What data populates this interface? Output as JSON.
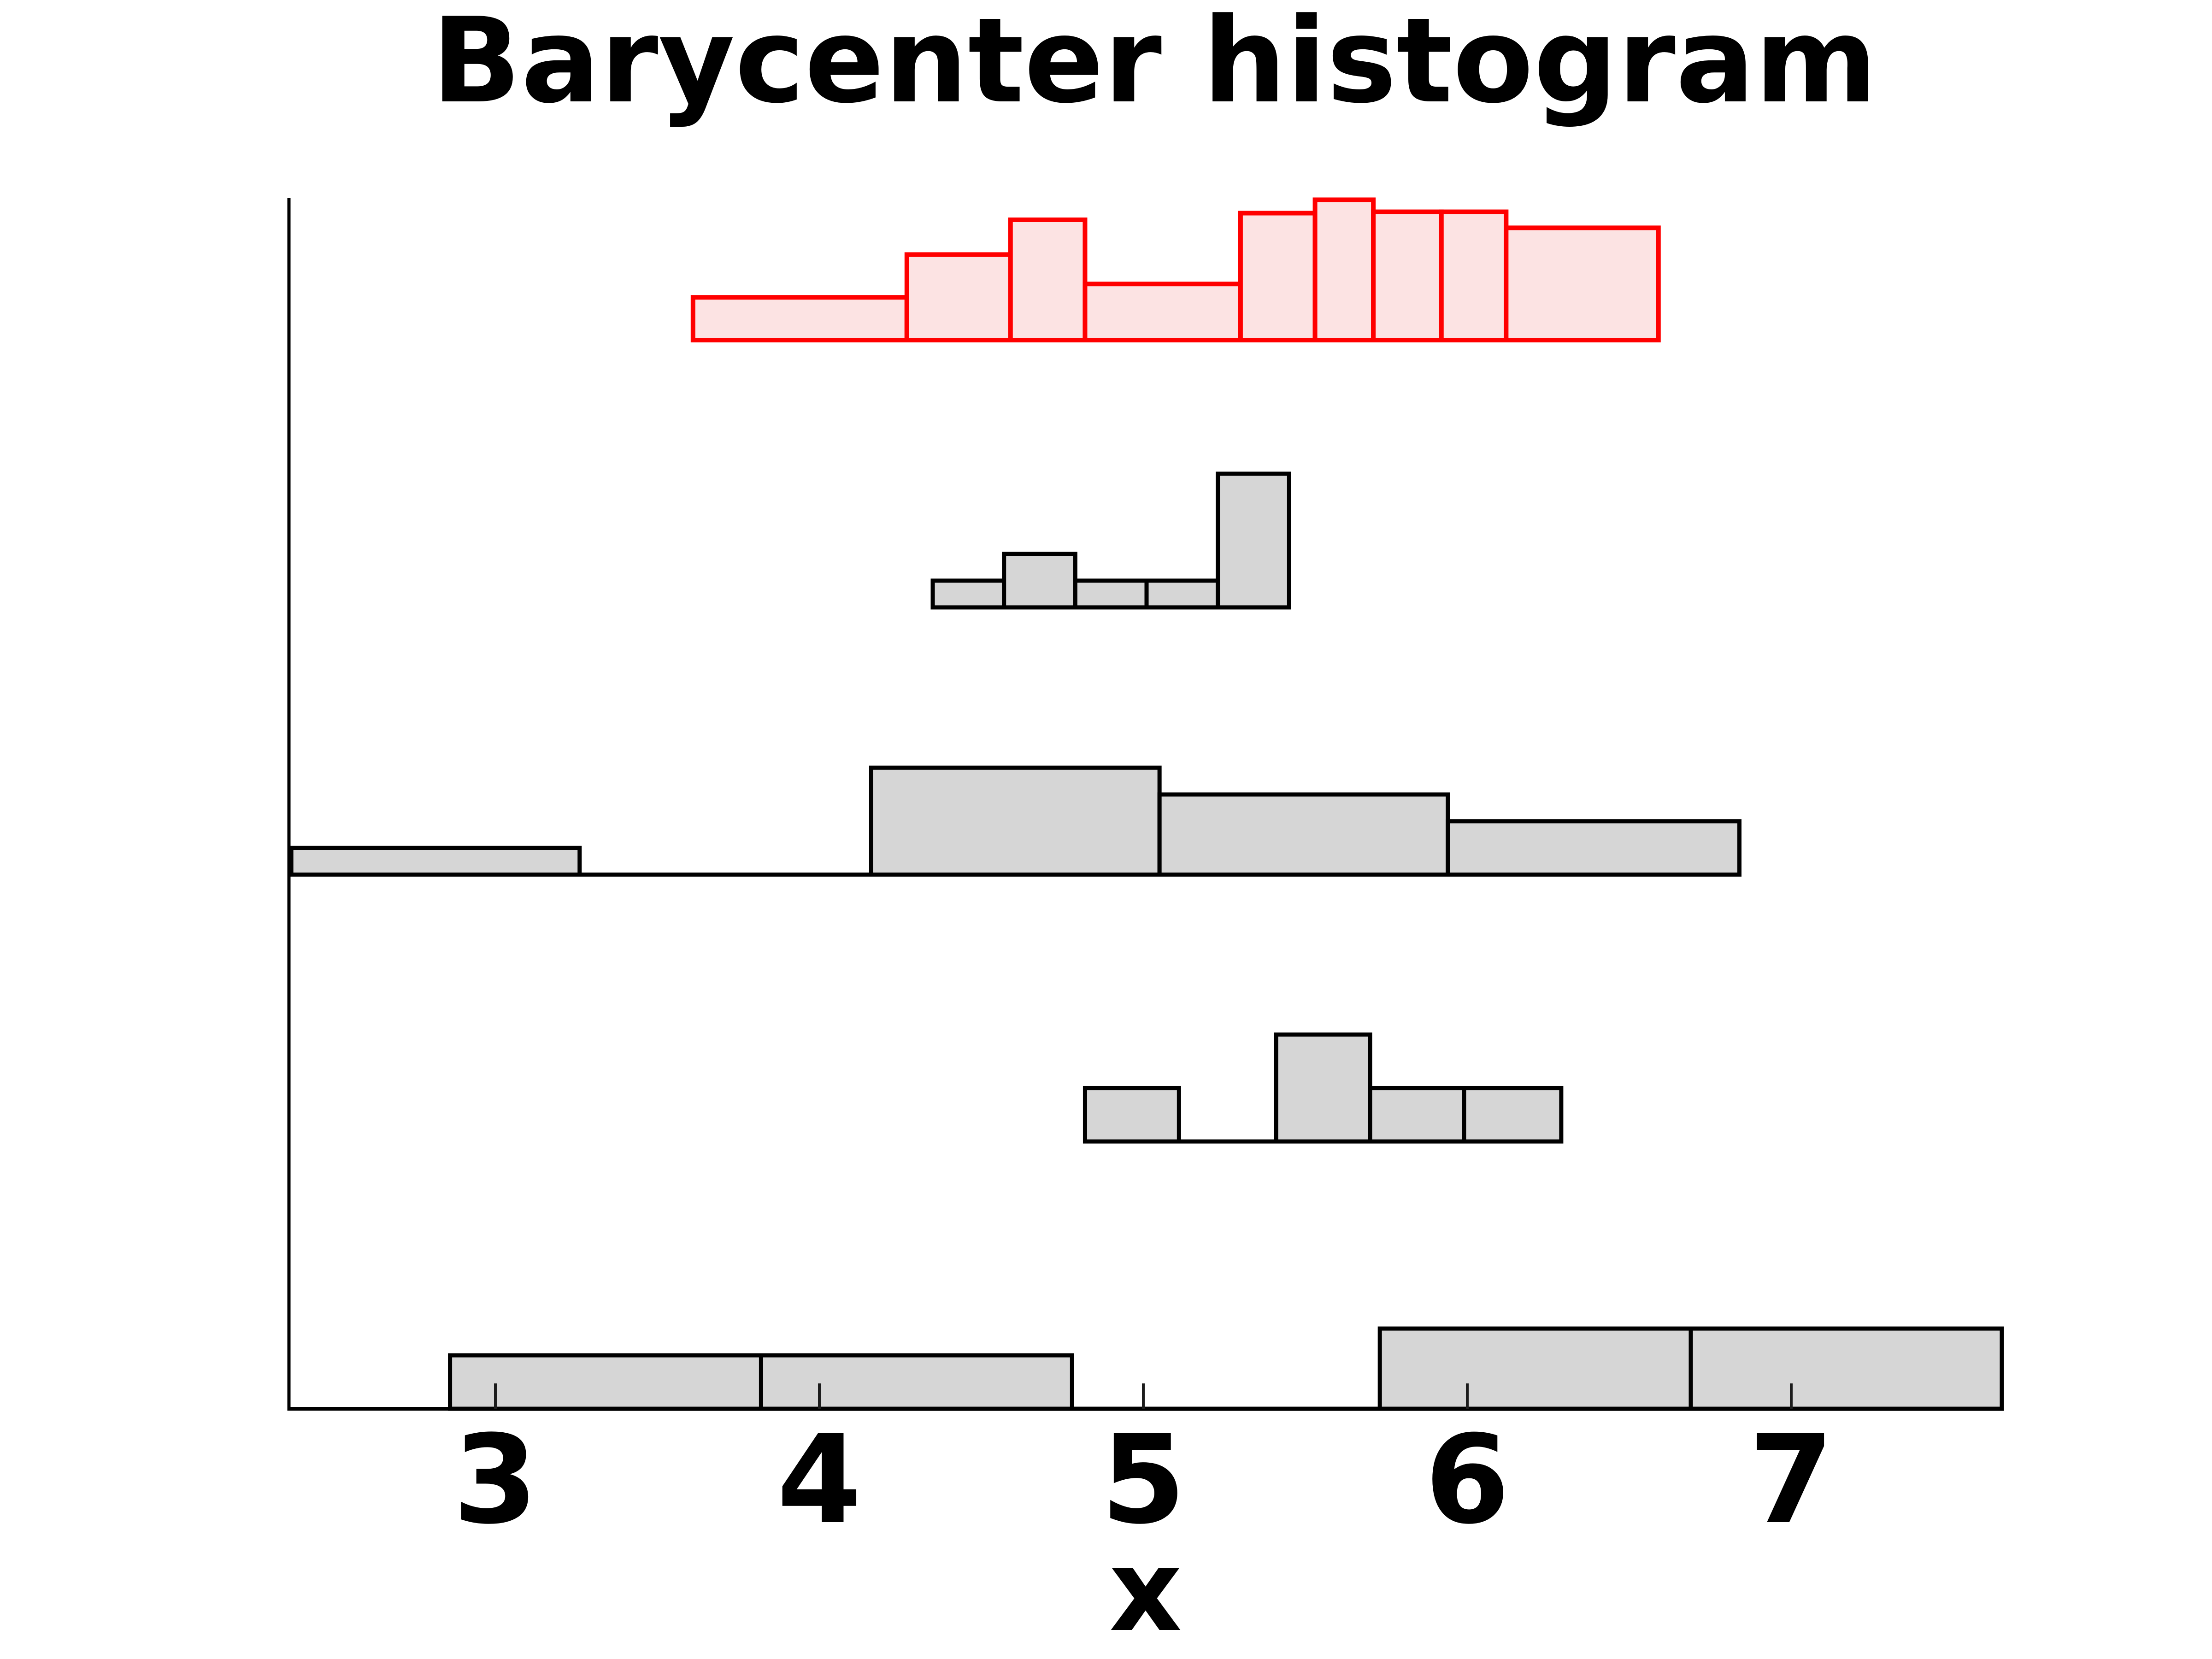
{
  "chart_data": {
    "type": "bar",
    "subtype": "stacked-ridgeline-histograms",
    "title": "Barycenter histogram",
    "xlabel": "x",
    "x_ticks": [
      3,
      4,
      5,
      6,
      7
    ],
    "xlim": [
      2.36,
      7.66
    ],
    "grid": false,
    "legend": false,
    "note": "Five histograms drawn at vertical offsets on one axis; top (red) is the barycenter, four gray histograms below it. Heights are in count units (no y-axis shown).",
    "series": [
      {
        "id": "barycenter",
        "role": "barycenter",
        "row": 0,
        "line_color": "#ff0000",
        "fill_color": "#fce3e3",
        "bin_edges": [
          3.61,
          4.27,
          4.59,
          4.82,
          5.3,
          5.53,
          5.71,
          5.92,
          6.12,
          6.59
        ],
        "heights": [
          1.6,
          3.2,
          4.5,
          2.1,
          4.75,
          5.25,
          4.8,
          4.8,
          4.2
        ]
      },
      {
        "id": "input-histogram-1",
        "role": "input",
        "row": 1,
        "line_color": "#000000",
        "fill_color": "#d6d6d6",
        "bin_edges": [
          4.35,
          4.57,
          4.79,
          5.01,
          5.23,
          5.45
        ],
        "heights": [
          1,
          2,
          1,
          1,
          5
        ]
      },
      {
        "id": "input-histogram-2",
        "role": "input",
        "row": 2,
        "line_color": "#000000",
        "fill_color": "#d6d6d6",
        "bin_edges": [
          2.37,
          3.26,
          4.16,
          5.05,
          5.94,
          6.84
        ],
        "heights": [
          1,
          0,
          4,
          3,
          2
        ]
      },
      {
        "id": "input-histogram-3",
        "role": "input",
        "row": 3,
        "line_color": "#000000",
        "fill_color": "#d6d6d6",
        "bin_edges": [
          4.82,
          5.11,
          5.41,
          5.7,
          5.99,
          6.29
        ],
        "heights": [
          2,
          0,
          4,
          2,
          2
        ]
      },
      {
        "id": "input-histogram-4",
        "role": "input",
        "row": 4,
        "line_color": "#000000",
        "fill_color": "#d6d6d6",
        "bin_edges": [
          2.86,
          3.82,
          4.78,
          5.73,
          6.69,
          7.65
        ],
        "heights": [
          2,
          2,
          0,
          3,
          3
        ]
      }
    ]
  }
}
